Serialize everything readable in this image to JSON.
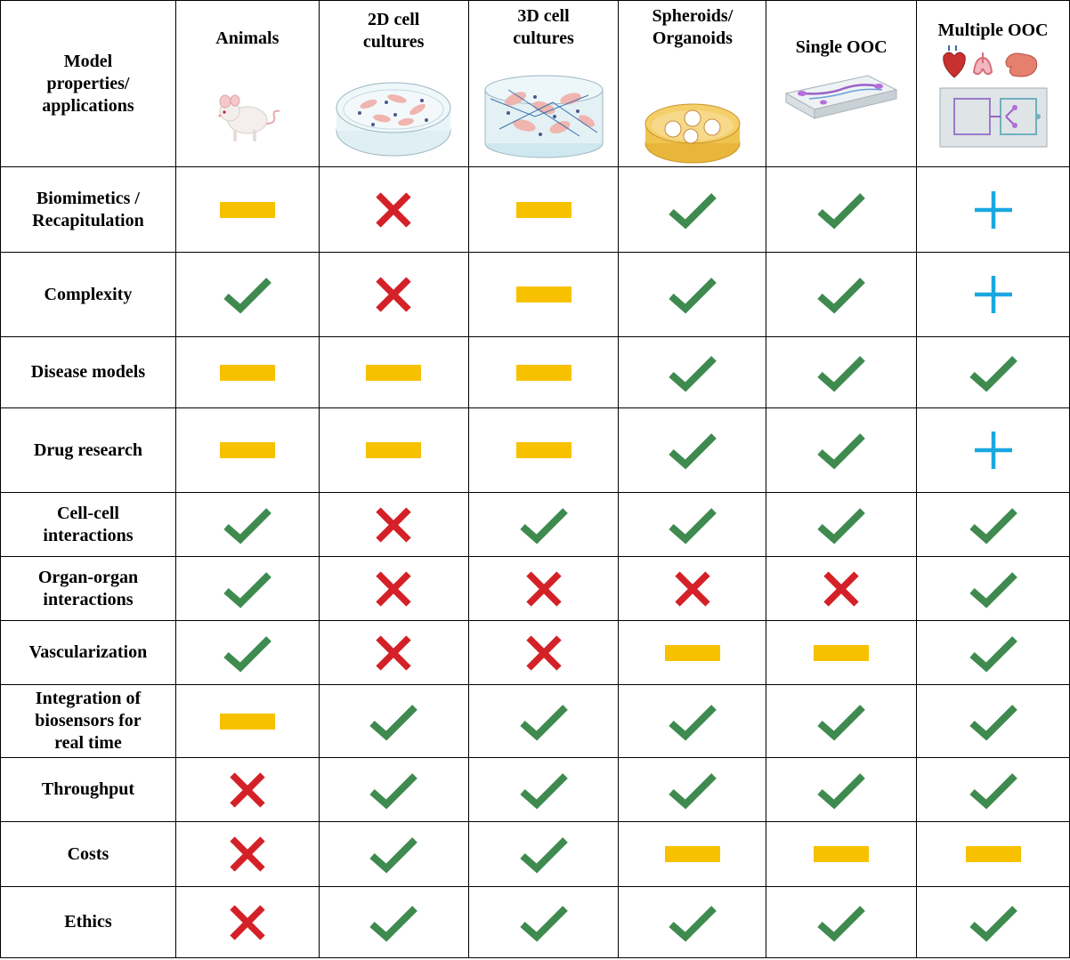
{
  "columns": [
    {
      "key": "animals",
      "label": "Animals"
    },
    {
      "key": "2d",
      "label": "2D cell\ncultures"
    },
    {
      "key": "3d",
      "label": "3D cell\ncultures"
    },
    {
      "key": "sph",
      "label": "Spheroids/\nOrganoids"
    },
    {
      "key": "sooc",
      "label": "Single OOC"
    },
    {
      "key": "mooc",
      "label": "Multiple OOC"
    }
  ],
  "corner_label": "Model\nproperties/\napplications",
  "rows": [
    {
      "label": "Biomimetics /\nRecapitulation",
      "values": [
        "partial",
        "no",
        "partial",
        "yes",
        "yes",
        "plus"
      ]
    },
    {
      "label": "Complexity",
      "values": [
        "yes",
        "no",
        "partial",
        "yes",
        "yes",
        "plus"
      ]
    },
    {
      "label": "Disease models",
      "values": [
        "partial",
        "partial",
        "partial",
        "yes",
        "yes",
        "yes"
      ]
    },
    {
      "label": "Drug research",
      "values": [
        "partial",
        "partial",
        "partial",
        "yes",
        "yes",
        "plus"
      ]
    },
    {
      "label": "Cell-cell\ninteractions",
      "values": [
        "yes",
        "no",
        "yes",
        "yes",
        "yes",
        "yes"
      ]
    },
    {
      "label": "Organ-organ\ninteractions",
      "values": [
        "yes",
        "no",
        "no",
        "no",
        "no",
        "yes"
      ]
    },
    {
      "label": "Vascularization",
      "values": [
        "yes",
        "no",
        "no",
        "partial",
        "partial",
        "yes"
      ]
    },
    {
      "label": "Integration of\nbiosensors for\nreal time",
      "values": [
        "partial",
        "yes",
        "yes",
        "yes",
        "yes",
        "yes"
      ]
    },
    {
      "label": "Throughput",
      "values": [
        "no",
        "yes",
        "yes",
        "yes",
        "yes",
        "yes"
      ]
    },
    {
      "label": "Costs",
      "values": [
        "no",
        "yes",
        "yes",
        "partial",
        "partial",
        "partial"
      ]
    },
    {
      "label": "Ethics",
      "values": [
        "no",
        "yes",
        "yes",
        "yes",
        "yes",
        "yes"
      ]
    }
  ],
  "symbols": {
    "yes": {
      "icon": "check-icon",
      "color": "#3f8a4f"
    },
    "no": {
      "icon": "cross-icon",
      "color": "#d42027"
    },
    "partial": {
      "icon": "dash-icon",
      "color": "#f7c100"
    },
    "plus": {
      "icon": "plus-icon",
      "color": "#1aa7e0"
    }
  }
}
